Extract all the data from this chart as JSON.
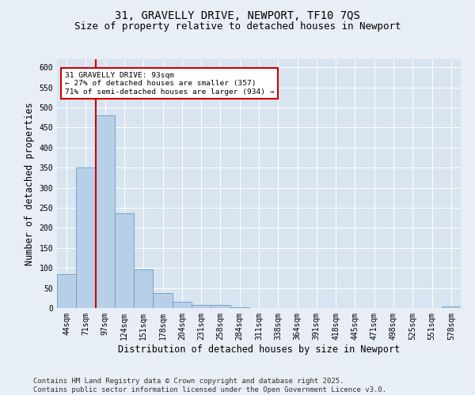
{
  "title1": "31, GRAVELLY DRIVE, NEWPORT, TF10 7QS",
  "title2": "Size of property relative to detached houses in Newport",
  "xlabel": "Distribution of detached houses by size in Newport",
  "ylabel": "Number of detached properties",
  "categories": [
    "44sqm",
    "71sqm",
    "97sqm",
    "124sqm",
    "151sqm",
    "178sqm",
    "204sqm",
    "231sqm",
    "258sqm",
    "284sqm",
    "311sqm",
    "338sqm",
    "364sqm",
    "391sqm",
    "418sqm",
    "445sqm",
    "471sqm",
    "498sqm",
    "525sqm",
    "551sqm",
    "578sqm"
  ],
  "values": [
    84,
    350,
    480,
    236,
    96,
    37,
    16,
    7,
    7,
    2,
    0,
    0,
    0,
    0,
    0,
    0,
    0,
    0,
    0,
    0,
    3
  ],
  "bar_color": "#b8cfe8",
  "bar_edge_color": "#6a9ec0",
  "vline_color": "#cc0000",
  "annotation_text": "31 GRAVELLY DRIVE: 93sqm\n← 27% of detached houses are smaller (357)\n71% of semi-detached houses are larger (934) →",
  "annotation_box_color": "#ffffff",
  "annotation_box_edge": "#cc0000",
  "ylim": [
    0,
    620
  ],
  "yticks": [
    0,
    50,
    100,
    150,
    200,
    250,
    300,
    350,
    400,
    450,
    500,
    550,
    600
  ],
  "footnote": "Contains HM Land Registry data © Crown copyright and database right 2025.\nContains public sector information licensed under the Open Government Licence v3.0.",
  "bg_color": "#e8eef5",
  "plot_bg_color": "#d8e4f0",
  "grid_color": "#ffffff",
  "title_fontsize": 10,
  "subtitle_fontsize": 9,
  "tick_fontsize": 7,
  "label_fontsize": 8.5,
  "footnote_fontsize": 6.5,
  "vline_position": 1.5
}
